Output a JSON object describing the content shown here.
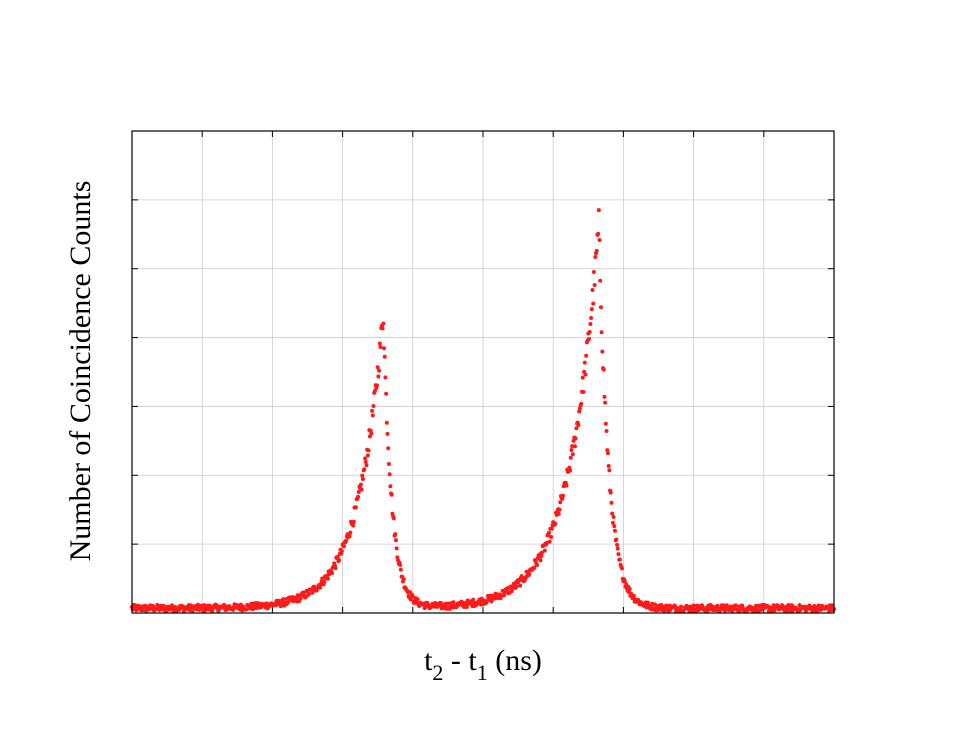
{
  "chart_data": {
    "type": "scatter",
    "title": "",
    "xlabel": {
      "base1": "t",
      "sub1": "2",
      "mid": " - t",
      "sub2": "1",
      "tail": " (ns)"
    },
    "ylabel": "Number of Coincidence Counts",
    "grid": true,
    "legend": "none",
    "xlim": [
      0,
      10
    ],
    "ylim": [
      0,
      7
    ],
    "x_ticks": [
      0,
      1,
      2,
      3,
      4,
      5,
      6,
      7,
      8,
      9,
      10
    ],
    "y_ticks": [
      0,
      1,
      2,
      3,
      4,
      5,
      6,
      7
    ],
    "tick_labels_shown": false,
    "series": [
      {
        "marker_color": "#ff1a1a",
        "peaks": [
          {
            "center": 3.58,
            "amplitude": 4.27,
            "width_left": 0.36,
            "width_right": 0.12
          },
          {
            "center": 6.65,
            "amplitude": 5.55,
            "width_left": 0.42,
            "width_right": 0.14
          }
        ],
        "baseline": 0.07,
        "noise": 0.045,
        "x_start": 0.0,
        "x_end": 10.0,
        "x_step": 0.01
      }
    ]
  }
}
